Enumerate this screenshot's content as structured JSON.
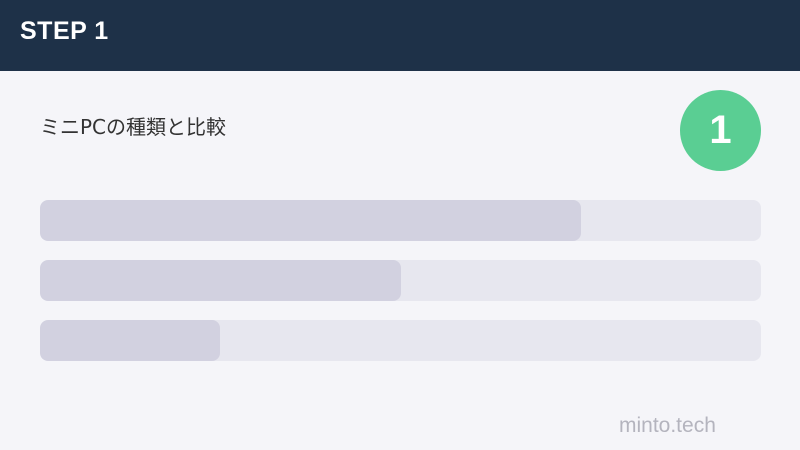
{
  "header": {
    "title": "STEP 1"
  },
  "main": {
    "subtitle": "ミニPCの種類と比較",
    "step_number": "1",
    "progress_bars": [
      0.75,
      0.5,
      0.25
    ]
  },
  "footer": {
    "brand": "minto.tech"
  },
  "colors": {
    "header": "#1e3148",
    "badge": "#5ace93",
    "bar_track": "#e7e7ef",
    "bar_fill": "#d2d1e0"
  }
}
